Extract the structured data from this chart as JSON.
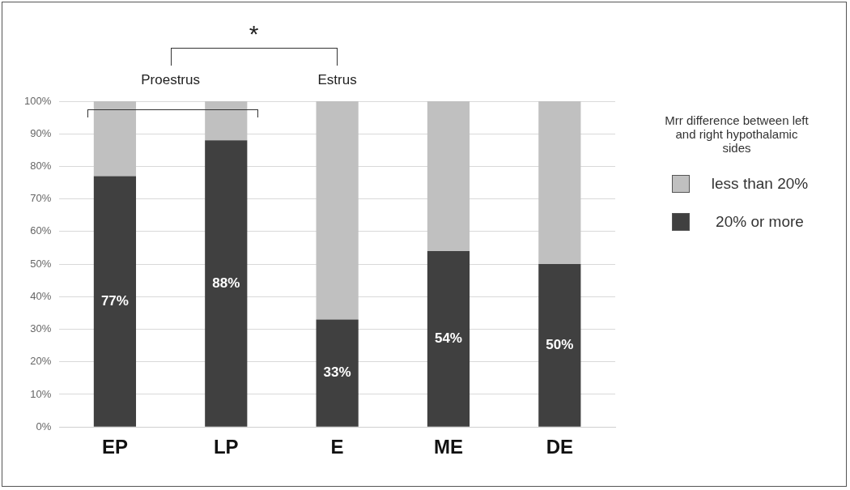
{
  "chart_data": {
    "type": "bar",
    "stacked": true,
    "categories": [
      "EP",
      "LP",
      "E",
      "ME",
      "DE"
    ],
    "series": [
      {
        "name": "20% or more",
        "color": "#404040",
        "values": [
          77,
          88,
          33,
          54,
          50
        ],
        "value_labels": [
          "77%",
          "88%",
          "33%",
          "54%",
          "50%"
        ]
      },
      {
        "name": "less than 20%",
        "color": "#c0c0c0",
        "values": [
          23,
          12,
          67,
          46,
          50
        ]
      }
    ],
    "ylim": [
      0,
      100
    ],
    "yticks": [
      {
        "value": 0,
        "label": "0%"
      },
      {
        "value": 10,
        "label": "10%"
      },
      {
        "value": 20,
        "label": "20%"
      },
      {
        "value": 30,
        "label": "30%"
      },
      {
        "value": 40,
        "label": "40%"
      },
      {
        "value": 50,
        "label": "50%"
      },
      {
        "value": 60,
        "label": "60%"
      },
      {
        "value": 70,
        "label": "70%"
      },
      {
        "value": 80,
        "label": "80%"
      },
      {
        "value": 90,
        "label": "90%"
      },
      {
        "value": 100,
        "label": "100%"
      }
    ],
    "grid": "y",
    "legend": "right",
    "legend_title": "Mrr difference between left and right hypothalamic sides",
    "annotations": [
      "*",
      "Proestrus",
      "Estrus"
    ]
  }
}
